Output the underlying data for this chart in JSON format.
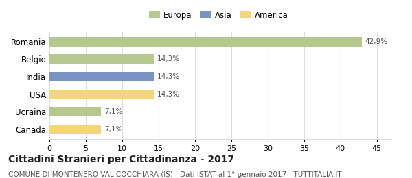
{
  "categories": [
    "Canada",
    "Ucraina",
    "USA",
    "India",
    "Belgio",
    "Romania"
  ],
  "values": [
    7.1,
    7.1,
    14.3,
    14.3,
    14.3,
    42.9
  ],
  "labels": [
    "7,1%",
    "7,1%",
    "14,3%",
    "14,3%",
    "14,3%",
    "42,9%"
  ],
  "colors": [
    "#f5d57a",
    "#b5c98e",
    "#f5d57a",
    "#7b93c4",
    "#b5c98e",
    "#b5c98e"
  ],
  "legend_items": [
    {
      "label": "Europa",
      "color": "#b5c98e"
    },
    {
      "label": "Asia",
      "color": "#7b93c4"
    },
    {
      "label": "America",
      "color": "#f5d57a"
    }
  ],
  "xlim": [
    0,
    47
  ],
  "xticks": [
    0,
    5,
    10,
    15,
    20,
    25,
    30,
    35,
    40,
    45
  ],
  "title": "Cittadini Stranieri per Cittadinanza - 2017",
  "subtitle": "COMUNE DI MONTENERO VAL COCCHIARA (IS) - Dati ISTAT al 1° gennaio 2017 - TUTTITALIA.IT",
  "title_fontsize": 10,
  "subtitle_fontsize": 7.5,
  "ylabel_fontsize": 8.5,
  "xlabel_fontsize": 8,
  "label_fontsize": 7.5,
  "background_color": "#ffffff",
  "grid_color": "#dddddd"
}
